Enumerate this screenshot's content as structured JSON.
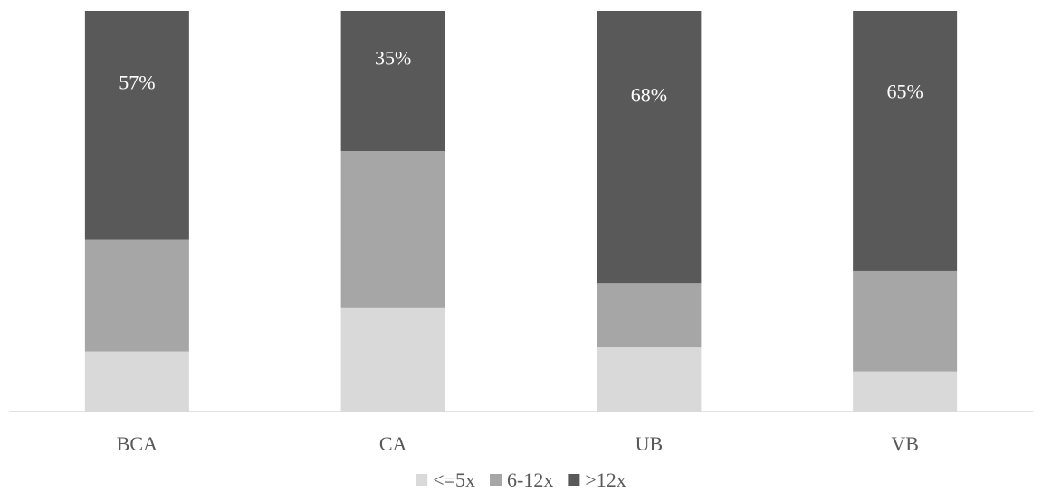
{
  "chart_data": {
    "type": "bar",
    "stacked": true,
    "percent_stacked": true,
    "title": "",
    "xlabel": "",
    "ylabel": "",
    "ylim": [
      0,
      100
    ],
    "grid": false,
    "legend_position": "bottom",
    "categories": [
      "BCA",
      "CA",
      "UB",
      "VB"
    ],
    "series": [
      {
        "name": "<=5x",
        "color": "#d9d9d9",
        "values": [
          15,
          26,
          16,
          10
        ],
        "labels": [
          "",
          "",
          "",
          ""
        ]
      },
      {
        "name": "6-12x",
        "color": "#a6a6a6",
        "values": [
          28,
          39,
          16,
          25
        ],
        "labels": [
          "",
          "",
          "",
          ""
        ]
      },
      {
        "name": ">12x",
        "color": "#595959",
        "values": [
          57,
          35,
          68,
          65
        ],
        "labels": [
          "57%",
          "35%",
          "68%",
          "65%"
        ]
      }
    ],
    "data_label_color": "#ffffff"
  }
}
